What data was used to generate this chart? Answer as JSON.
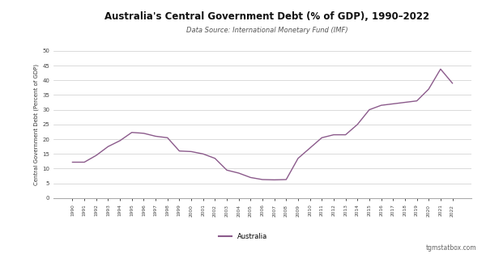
{
  "title": "Australia's Central Government Debt (% of GDP), 1990–2022",
  "subtitle": "Data Source: International Monetary Fund (IMF)",
  "ylabel": "Central Government Debt (Percent of GDP)",
  "legend_label": "Australia",
  "watermark": "tgmstatbox.com",
  "line_color": "#8B5A8B",
  "background_color": "#1a1a1a",
  "plot_bg_color": "#ffffff",
  "header_bg_color": "#1a1a1a",
  "grid_color": "#cccccc",
  "ylim": [
    0,
    50
  ],
  "yticks": [
    0,
    5,
    10,
    15,
    20,
    25,
    30,
    35,
    40,
    45,
    50
  ],
  "years": [
    1990,
    1991,
    1992,
    1993,
    1994,
    1995,
    1996,
    1997,
    1998,
    1999,
    2000,
    2001,
    2002,
    2003,
    2004,
    2005,
    2006,
    2007,
    2008,
    2009,
    2010,
    2011,
    2012,
    2013,
    2014,
    2015,
    2016,
    2017,
    2018,
    2019,
    2020,
    2021,
    2022
  ],
  "values": [
    12.2,
    12.2,
    14.5,
    17.5,
    19.5,
    22.3,
    22.0,
    21.0,
    20.5,
    16.0,
    15.8,
    15.0,
    13.5,
    9.5,
    8.5,
    7.0,
    6.3,
    6.2,
    6.3,
    13.5,
    17.0,
    20.5,
    21.5,
    21.5,
    25.0,
    30.0,
    31.5,
    32.0,
    32.5,
    33.0,
    37.0,
    43.8,
    39.0
  ]
}
